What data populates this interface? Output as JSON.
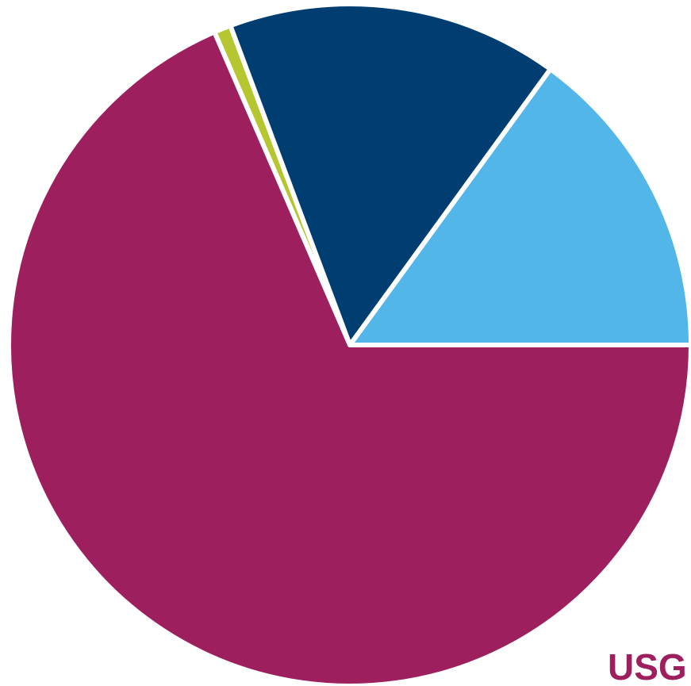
{
  "chart_data": {
    "type": "pie",
    "title": "",
    "start_angle_deg": 0,
    "direction": "counterclockwise",
    "slices": [
      {
        "value": 15.0,
        "color": "#52b6e8"
      },
      {
        "value": 15.7,
        "color": "#003e72"
      },
      {
        "value": 0.8,
        "color": "#b5c630"
      },
      {
        "value": 68.5,
        "color": "#9e1f5e"
      }
    ]
  },
  "footer": {
    "partial_text": "USG",
    "color": "#9e1f5e"
  }
}
